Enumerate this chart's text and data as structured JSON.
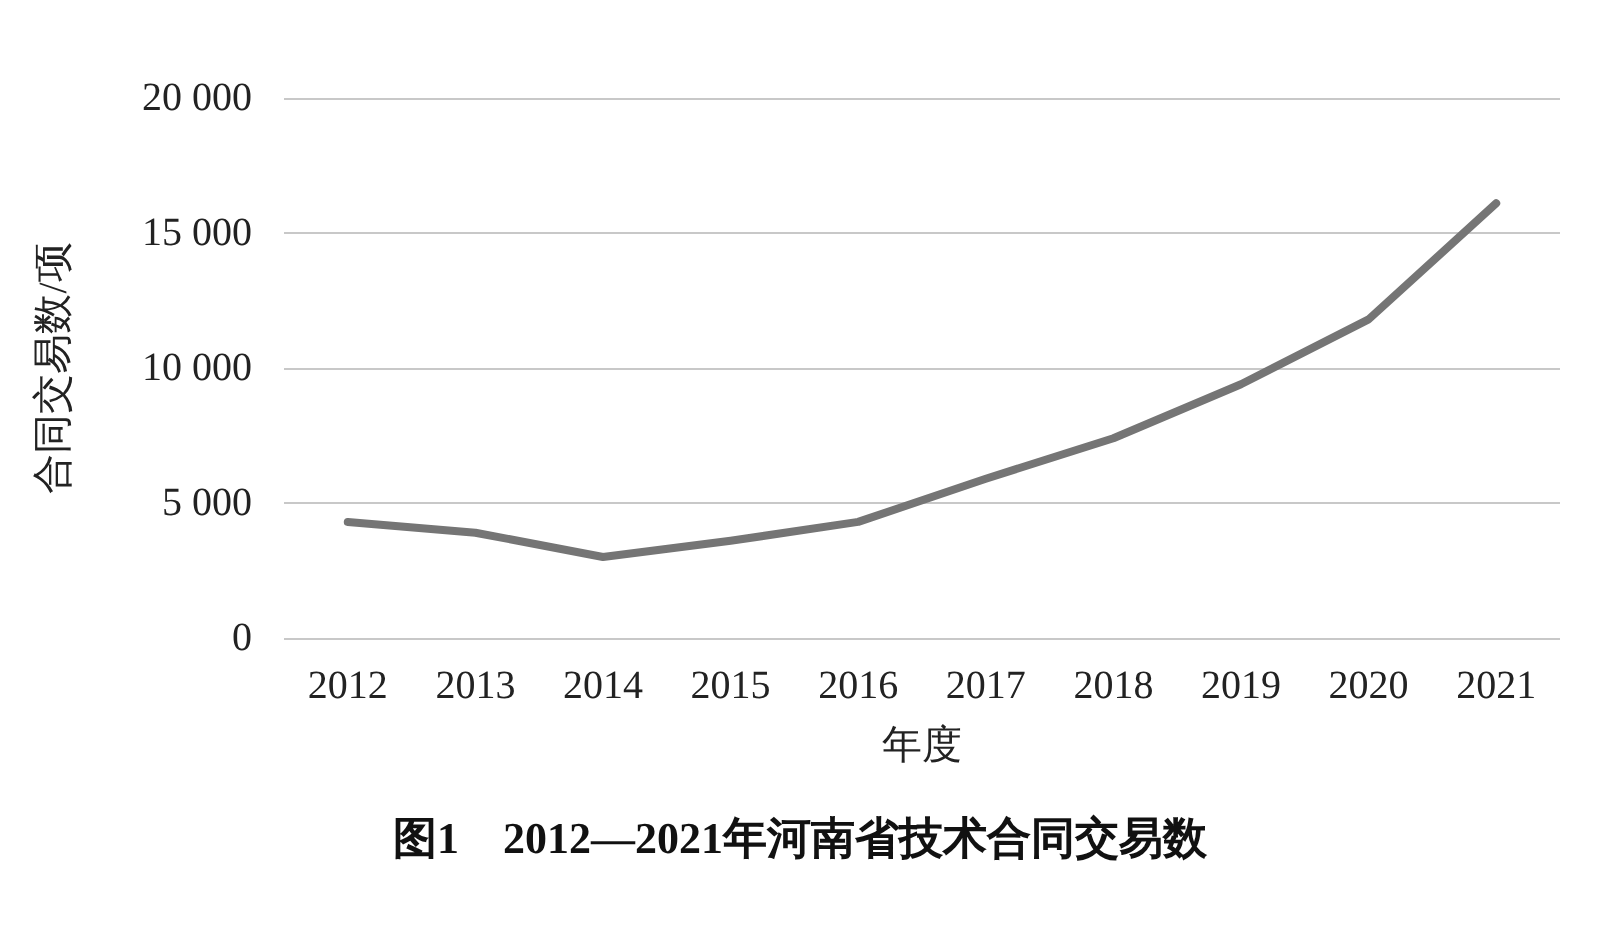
{
  "chart_data": {
    "type": "line",
    "title": "图1　2012—2021年河南省技术合同交易数",
    "xlabel": "年度",
    "ylabel": "合同交易数/项",
    "categories": [
      "2012",
      "2013",
      "2014",
      "2015",
      "2016",
      "2017",
      "2018",
      "2019",
      "2020",
      "2021"
    ],
    "series": [
      {
        "color": "#757575",
        "values": [
          4300,
          3900,
          3000,
          3600,
          4300,
          5900,
          7400,
          9400,
          11800,
          16100
        ]
      }
    ],
    "ylim": [
      0,
      20000
    ],
    "yticks": [
      0,
      {
        "value": 5000,
        "label": "5 000"
      },
      {
        "value": 10000,
        "label": "10 000"
      },
      {
        "value": 15000,
        "label": "15 000"
      },
      {
        "value": 20000,
        "label": "20 000"
      }
    ],
    "grid": "y",
    "marker": "none",
    "line_style": "solid"
  }
}
